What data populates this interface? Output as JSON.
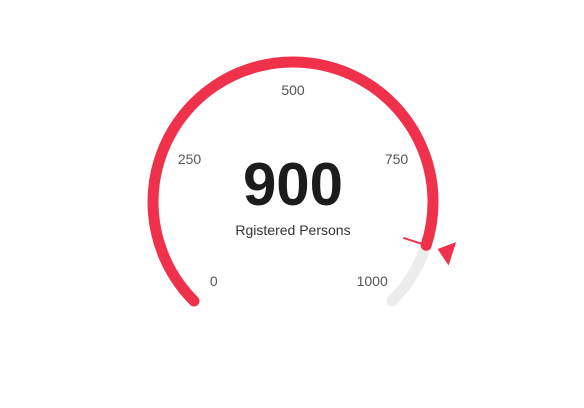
{
  "chart_data": {
    "type": "gauge",
    "min": 0,
    "max": 1000,
    "value": 900,
    "value_label": "900",
    "caption": "Rgistered Persons",
    "ticks": [
      {
        "value": 0,
        "label": "0"
      },
      {
        "value": 250,
        "label": "250"
      },
      {
        "value": 500,
        "label": "500"
      },
      {
        "value": 750,
        "label": "750"
      },
      {
        "value": 1000,
        "label": "1000"
      }
    ],
    "target": 900,
    "colors": {
      "fill": "#f0314b",
      "track": "#ececec",
      "text": "#1c1c1c",
      "tick_text": "#555555"
    }
  }
}
